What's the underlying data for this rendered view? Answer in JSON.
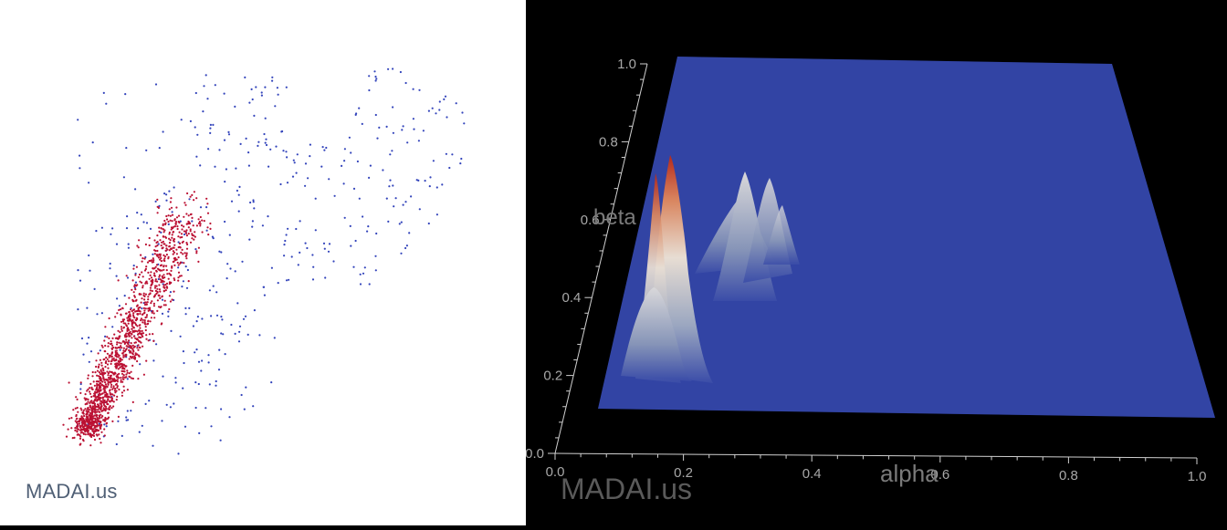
{
  "watermark": "MADAI.us",
  "chart_data": [
    {
      "type": "scatter",
      "title": "",
      "series": [
        {
          "color": "#3344bb"
        },
        {
          "color": "#bb1133"
        }
      ],
      "grid": false
    },
    {
      "type": "surface",
      "xlabel": "alpha",
      "ylabel": "beta",
      "xlim": [
        0,
        1
      ],
      "ylim": [
        0,
        1
      ],
      "xticks": [
        "0.0",
        "0.2",
        "0.4",
        "0.6",
        "0.8",
        "1.0"
      ],
      "yticks": [
        "0.0",
        "0.2",
        "0.4",
        "0.6",
        "0.8",
        "1.0"
      ],
      "surface_color": "#3346a8",
      "peak_color": "#b42a1c",
      "background": "#000000"
    }
  ]
}
